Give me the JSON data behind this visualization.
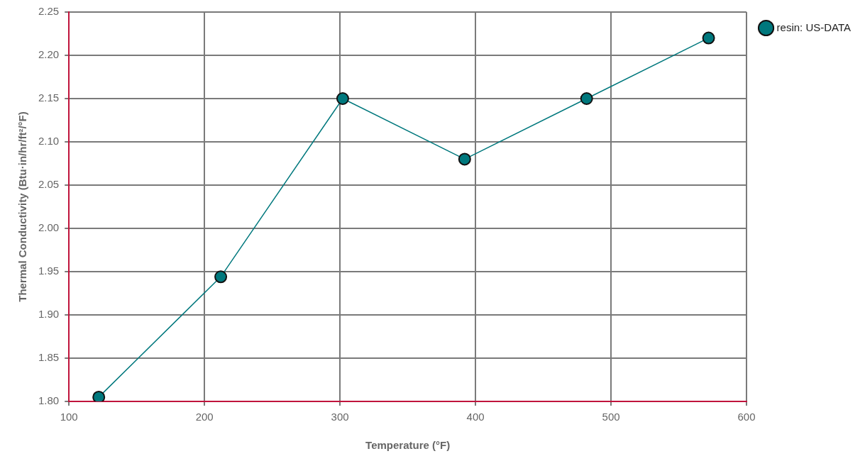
{
  "chart_data": {
    "type": "line",
    "xlabel": "Temperature (°F)",
    "ylabel": "Thermal Conductivity (Btu·in/hr/ft²/°F)",
    "x": [
      122,
      212,
      302,
      392,
      482,
      572
    ],
    "series": [
      {
        "name": "resin: US-DATA",
        "color": "#00787d",
        "values": [
          1.805,
          1.944,
          2.15,
          2.08,
          2.15,
          2.22
        ]
      }
    ],
    "xlim": [
      100,
      600
    ],
    "xticks": [
      100,
      200,
      300,
      400,
      500,
      600
    ],
    "ylim": [
      1.8,
      2.25
    ],
    "yticks": [
      {
        "value": 1.8,
        "label": "1.80"
      },
      {
        "value": 1.85,
        "label": "1.85"
      },
      {
        "value": 1.9,
        "label": "1.90"
      },
      {
        "value": 1.95,
        "label": "1.95"
      },
      {
        "value": 2.0,
        "label": "2.00"
      },
      {
        "value": 2.05,
        "label": "2.05"
      },
      {
        "value": 2.1,
        "label": "2.10"
      },
      {
        "value": 2.15,
        "label": "2.15"
      },
      {
        "value": 2.2,
        "label": "2.20"
      },
      {
        "value": 2.25,
        "label": "2.25"
      }
    ],
    "grid": true,
    "legend": "top right",
    "marker": "circle",
    "line_style": "solid"
  }
}
